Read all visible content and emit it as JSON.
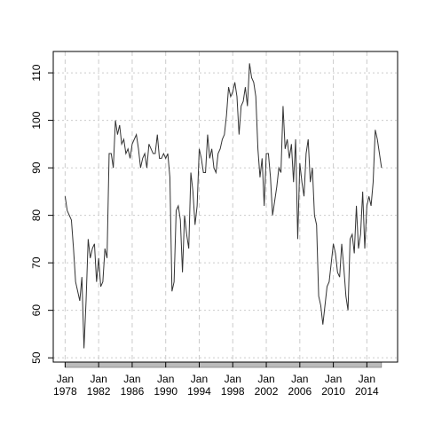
{
  "chart_data": {
    "type": "line",
    "x": [
      "1978-01",
      "1978-04",
      "1978-07",
      "1978-10",
      "1979-01",
      "1979-04",
      "1979-07",
      "1979-10",
      "1980-01",
      "1980-04",
      "1980-07",
      "1980-10",
      "1981-01",
      "1981-04",
      "1981-07",
      "1981-10",
      "1982-01",
      "1982-04",
      "1982-07",
      "1982-10",
      "1983-01",
      "1983-04",
      "1983-07",
      "1983-10",
      "1984-01",
      "1984-04",
      "1984-07",
      "1984-10",
      "1985-01",
      "1985-04",
      "1985-07",
      "1985-10",
      "1986-01",
      "1986-04",
      "1986-07",
      "1986-10",
      "1987-01",
      "1987-04",
      "1987-07",
      "1987-10",
      "1988-01",
      "1988-04",
      "1988-07",
      "1988-10",
      "1989-01",
      "1989-04",
      "1989-07",
      "1989-10",
      "1990-01",
      "1990-04",
      "1990-07",
      "1990-10",
      "1991-01",
      "1991-04",
      "1991-07",
      "1991-10",
      "1992-01",
      "1992-04",
      "1992-07",
      "1992-10",
      "1993-01",
      "1993-04",
      "1993-07",
      "1993-10",
      "1994-01",
      "1994-04",
      "1994-07",
      "1994-10",
      "1995-01",
      "1995-04",
      "1995-07",
      "1995-10",
      "1996-01",
      "1996-04",
      "1996-07",
      "1996-10",
      "1997-01",
      "1997-04",
      "1997-07",
      "1997-10",
      "1998-01",
      "1998-04",
      "1998-07",
      "1998-10",
      "1999-01",
      "1999-04",
      "1999-07",
      "1999-10",
      "2000-01",
      "2000-04",
      "2000-07",
      "2000-10",
      "2001-01",
      "2001-04",
      "2001-07",
      "2001-10",
      "2002-01",
      "2002-04",
      "2002-07",
      "2002-10",
      "2003-01",
      "2003-04",
      "2003-07",
      "2003-10",
      "2004-01",
      "2004-04",
      "2004-07",
      "2004-10",
      "2005-01",
      "2005-04",
      "2005-07",
      "2005-10",
      "2006-01",
      "2006-04",
      "2006-07",
      "2006-10",
      "2007-01",
      "2007-04",
      "2007-07",
      "2007-10",
      "2008-01",
      "2008-04",
      "2008-07",
      "2008-10",
      "2009-01",
      "2009-04",
      "2009-07",
      "2009-10",
      "2010-01",
      "2010-04",
      "2010-07",
      "2010-10",
      "2011-01",
      "2011-04",
      "2011-07",
      "2011-10",
      "2012-01",
      "2012-04",
      "2012-07",
      "2012-10",
      "2013-01",
      "2013-04",
      "2013-07",
      "2013-10",
      "2014-01",
      "2014-04",
      "2014-07",
      "2014-10",
      "2015-01",
      "2015-04",
      "2015-07",
      "2015-10"
    ],
    "series": [
      {
        "color": "#333333",
        "values": [
          84,
          81,
          80,
          79,
          73,
          66,
          64,
          62,
          67,
          52,
          62,
          75,
          71,
          73,
          74,
          66,
          71,
          65,
          66,
          73,
          71,
          93,
          93,
          90,
          100,
          97,
          99,
          95,
          96,
          93,
          94,
          92,
          95,
          96,
          97,
          94,
          90,
          92,
          93,
          90,
          95,
          94,
          93,
          93,
          97,
          92,
          92,
          93,
          92,
          93,
          88,
          64,
          66,
          81,
          82,
          79,
          68,
          80,
          76,
          73,
          89,
          85,
          78,
          82,
          94,
          92,
          89,
          89,
          97,
          92,
          94,
          90,
          89,
          93,
          94,
          96,
          97,
          101,
          107,
          105,
          106,
          108,
          105,
          97,
          103,
          104,
          107,
          103,
          112,
          109,
          108,
          105,
          94,
          88,
          92,
          82,
          93,
          93,
          88,
          80,
          83,
          86,
          90,
          89,
          103,
          94,
          96,
          92,
          95,
          87,
          96,
          75,
          91,
          87,
          84,
          93,
          96,
          87,
          90,
          80,
          78,
          63,
          61,
          57,
          61,
          65,
          66,
          70,
          74,
          72,
          68,
          67,
          74,
          69,
          63,
          60,
          75,
          76,
          72,
          82,
          73,
          76,
          85,
          73,
          82,
          84,
          82,
          87,
          98,
          96,
          93,
          90
        ]
      }
    ],
    "xlim": [
      "1976-08",
      "2017-09"
    ],
    "xticks": [
      {
        "value": "1978-01",
        "label": "Jan\n1978"
      },
      {
        "value": "1982-01",
        "label": "Jan\n1982"
      },
      {
        "value": "1986-01",
        "label": "Jan\n1986"
      },
      {
        "value": "1990-01",
        "label": "Jan\n1990"
      },
      {
        "value": "1994-01",
        "label": "Jan\n1994"
      },
      {
        "value": "1998-01",
        "label": "Jan\n1998"
      },
      {
        "value": "2002-01",
        "label": "Jan\n2002"
      },
      {
        "value": "2006-01",
        "label": "Jan\n2006"
      },
      {
        "value": "2010-01",
        "label": "Jan\n2010"
      },
      {
        "value": "2014-01",
        "label": "Jan\n2014"
      }
    ],
    "ylim": [
      49.1,
      114.5
    ],
    "yticks": [
      50,
      60,
      70,
      80,
      90,
      100,
      110
    ],
    "grid": true
  }
}
